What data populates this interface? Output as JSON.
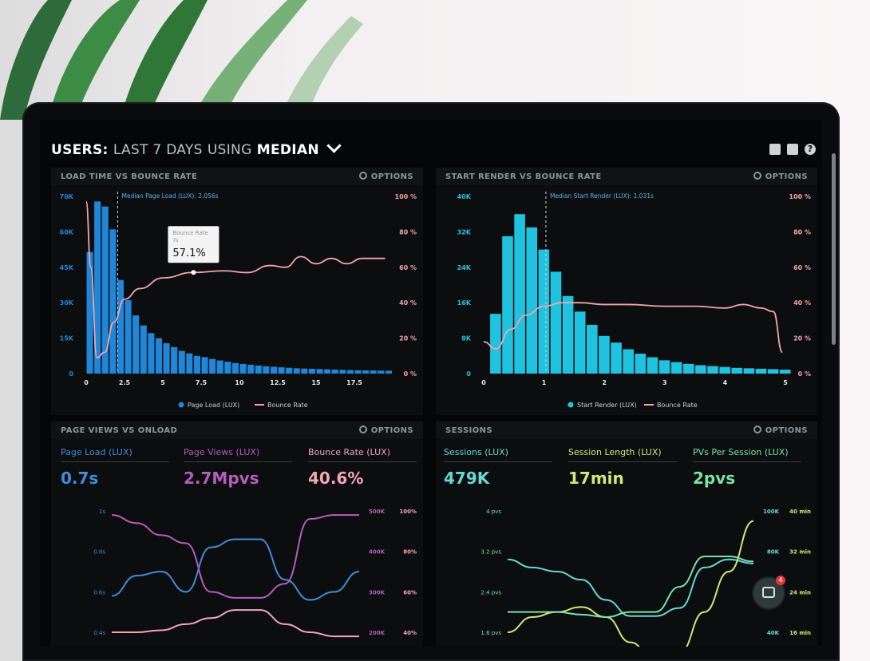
{
  "header": {
    "title_prefix": "USERS:",
    "title_mid": "LAST 7 DAYS",
    "title_using": "USING",
    "title_method": "MEDIAN",
    "icons": [
      "monitor-icon",
      "share-icon",
      "help-icon"
    ],
    "help_glyph": "?"
  },
  "panels": {
    "load_time": {
      "title": "LOAD TIME VS BOUNCE RATE",
      "options": "OPTIONS",
      "annotation": "Median Page Load (LUX): 2.056s",
      "tooltip_title": "Bounce Rate",
      "tooltip_sub": "7s",
      "tooltip_value": "57.1%",
      "legend_bar": "Page Load (LUX)",
      "legend_line": "Bounce Rate"
    },
    "start_render": {
      "title": "START RENDER VS BOUNCE RATE",
      "options": "OPTIONS",
      "annotation": "Median Start Render (LUX): 1.031s",
      "legend_bar": "Start Render (LUX)",
      "legend_line": "Bounce Rate"
    },
    "page_views": {
      "title": "PAGE VIEWS VS ONLOAD",
      "options": "OPTIONS",
      "metrics": [
        {
          "label": "Page Load (LUX)",
          "value": "0.7s",
          "color": "#3f8ed8"
        },
        {
          "label": "Page Views (LUX)",
          "value": "2.7Mpvs",
          "color": "#b35fb8"
        },
        {
          "label": "Bounce Rate (LUX)",
          "value": "40.6%",
          "color": "#f2a6b6"
        }
      ]
    },
    "sessions": {
      "title": "SESSIONS",
      "options": "OPTIONS",
      "metrics": [
        {
          "label": "Sessions (LUX)",
          "value": "479K",
          "color": "#66d9d4"
        },
        {
          "label": "Session Length (LUX)",
          "value": "17min",
          "color": "#d7e67a"
        },
        {
          "label": "PVs Per Session (LUX)",
          "value": "2pvs",
          "color": "#77e5a8"
        }
      ]
    }
  },
  "chat": {
    "badge": "4"
  },
  "colors": {
    "bar_blue": "#1f86d8",
    "bar_cyan": "#1fc3df",
    "line_pink": "#f0a5ad"
  },
  "chart_data": [
    {
      "type": "bar",
      "title": "LOAD TIME VS BOUNCE RATE",
      "x_ticks": [
        "0",
        "2.5",
        "5",
        "7.5",
        "10",
        "12.5",
        "15",
        "17.5"
      ],
      "xlim": [
        0,
        20
      ],
      "y_ticks": [
        "0",
        "15K",
        "30K",
        "45K",
        "60K",
        "70K"
      ],
      "ylim": [
        0,
        70000
      ],
      "y2_ticks": [
        "0 %",
        "20 %",
        "40 %",
        "60 %",
        "80 %",
        "100 %"
      ],
      "y2lim": [
        0,
        100
      ],
      "annotation_x": 2.056,
      "series": [
        {
          "name": "Page Load (LUX)",
          "kind": "bar",
          "bin_width": 0.5,
          "x": [
            0,
            0.5,
            1,
            1.5,
            2,
            2.5,
            3,
            3.5,
            4,
            4.5,
            5,
            5.5,
            6,
            6.5,
            7,
            7.5,
            8,
            8.5,
            9,
            9.5,
            10,
            10.5,
            11,
            11.5,
            12,
            12.5,
            13,
            13.5,
            14,
            14.5,
            15,
            15.5,
            16,
            16.5,
            17,
            17.5,
            18,
            18.5,
            19,
            19.5
          ],
          "values": [
            48000,
            68000,
            66000,
            57000,
            37000,
            29000,
            23000,
            19000,
            16000,
            14000,
            12000,
            10500,
            9000,
            8000,
            7000,
            6500,
            5800,
            5200,
            4700,
            4200,
            3800,
            3500,
            3200,
            2900,
            2700,
            2500,
            2300,
            2100,
            2000,
            1900,
            1800,
            1700,
            1600,
            1500,
            1400,
            1350,
            1300,
            1250,
            1200,
            1150
          ]
        },
        {
          "name": "Bounce Rate",
          "kind": "line",
          "axis": "y2",
          "x": [
            0,
            0.3,
            0.7,
            1.2,
            1.8,
            2.5,
            3.5,
            5,
            7,
            9,
            10.5,
            12,
            13,
            14,
            15,
            16,
            17,
            18,
            19.5
          ],
          "values": [
            97,
            60,
            9,
            12,
            29,
            42,
            48,
            54,
            57.1,
            58,
            57,
            61,
            60,
            66,
            62,
            65,
            62,
            65,
            65
          ]
        }
      ]
    },
    {
      "type": "bar",
      "title": "START RENDER VS BOUNCE RATE",
      "x_ticks": [
        "0",
        "1",
        "2",
        "3",
        "4",
        "5"
      ],
      "xlim": [
        0,
        5
      ],
      "y_ticks": [
        "0",
        "8K",
        "16K",
        "24K",
        "32K",
        "40K"
      ],
      "ylim": [
        0,
        40000
      ],
      "y2_ticks": [
        "0 %",
        "20 %",
        "40 %",
        "60 %",
        "80 %",
        "100 %"
      ],
      "y2lim": [
        0,
        100
      ],
      "annotation_x": 1.031,
      "series": [
        {
          "name": "Start Render (LUX)",
          "kind": "bar",
          "bin_width": 0.2,
          "x": [
            0.1,
            0.3,
            0.5,
            0.7,
            0.9,
            1.1,
            1.3,
            1.5,
            1.7,
            1.9,
            2.1,
            2.3,
            2.5,
            2.7,
            2.9,
            3.1,
            3.3,
            3.5,
            3.7,
            3.9,
            4.1,
            4.3,
            4.5,
            4.7,
            4.9
          ],
          "values": [
            13500,
            31000,
            36000,
            33000,
            28000,
            23000,
            17500,
            14000,
            11000,
            8500,
            7000,
            5500,
            4500,
            3700,
            3000,
            2600,
            2200,
            1900,
            1700,
            1500,
            1300,
            1200,
            1100,
            1000,
            900
          ]
        },
        {
          "name": "Bounce Rate",
          "kind": "line",
          "axis": "y2",
          "x": [
            0,
            0.2,
            0.45,
            0.7,
            1,
            1.3,
            1.6,
            2,
            2.4,
            3,
            3.5,
            4,
            4.3,
            4.6,
            4.8,
            4.95
          ],
          "values": [
            18,
            14,
            25,
            33,
            38,
            40,
            40,
            39,
            39,
            38,
            38,
            37,
            39,
            37,
            35,
            12
          ]
        }
      ]
    },
    {
      "type": "line",
      "title": "PAGE VIEWS VS ONLOAD",
      "y_ticks": [
        "0.4s",
        "0.6s",
        "0.8s",
        "1s"
      ],
      "y2_ticks": [
        "200K",
        "300K",
        "400K",
        "500K"
      ],
      "y3_ticks": [
        "40%",
        "60%",
        "80%",
        "100%"
      ],
      "series": [
        {
          "name": "Page Load (LUX)",
          "axis": "y",
          "x": [
            0,
            1,
            2,
            3,
            4,
            5,
            6,
            7,
            8,
            9,
            10
          ],
          "values": [
            0.58,
            0.68,
            0.7,
            0.6,
            0.82,
            0.86,
            0.86,
            0.66,
            0.56,
            0.6,
            0.7
          ]
        },
        {
          "name": "Page Views (LUX)",
          "axis": "y2",
          "x": [
            0,
            1,
            2,
            3,
            4,
            5,
            6,
            7,
            8,
            9,
            10
          ],
          "values": [
            490000,
            470000,
            440000,
            420000,
            300000,
            285000,
            285000,
            320000,
            480000,
            490000,
            490000
          ]
        },
        {
          "name": "Bounce Rate (LUX)",
          "axis": "y3",
          "x": [
            0,
            1,
            2,
            3,
            4,
            5,
            6,
            7,
            8,
            9,
            10
          ],
          "values": [
            40,
            40,
            41,
            44,
            47,
            51,
            51,
            44,
            40,
            38,
            38
          ]
        }
      ]
    },
    {
      "type": "line",
      "title": "SESSIONS",
      "y_ticks": [
        "1.6 pvs",
        "2.4 pvs",
        "3.2 pvs",
        "4 pvs"
      ],
      "y2_ticks": [
        "40K",
        "60K",
        "80K",
        "100K"
      ],
      "y3_ticks": [
        "16 min",
        "24 min",
        "32 min",
        "40 min"
      ],
      "series": [
        {
          "name": "Sessions (LUX)",
          "axis": "y2",
          "x": [
            0,
            1,
            2,
            3,
            4,
            5,
            6,
            7,
            8,
            9,
            10
          ],
          "values": [
            76000,
            72000,
            70000,
            66000,
            56000,
            48000,
            48000,
            52000,
            72000,
            76000,
            74000
          ]
        },
        {
          "name": "Session Length (LUX)",
          "axis": "y3",
          "x": [
            0,
            1,
            2,
            3,
            4,
            5,
            6,
            7,
            8,
            9,
            10
          ],
          "values": [
            16,
            19,
            20,
            21,
            19,
            14,
            10,
            12,
            20,
            28,
            38
          ]
        },
        {
          "name": "PVs Per Session (LUX)",
          "axis": "y",
          "x": [
            0,
            1,
            2,
            3,
            4,
            5,
            6,
            7,
            8,
            9,
            10
          ],
          "values": [
            2.0,
            2.0,
            2.0,
            1.95,
            1.9,
            2.0,
            2.0,
            2.5,
            3.1,
            3.1,
            3.0
          ]
        }
      ]
    }
  ]
}
